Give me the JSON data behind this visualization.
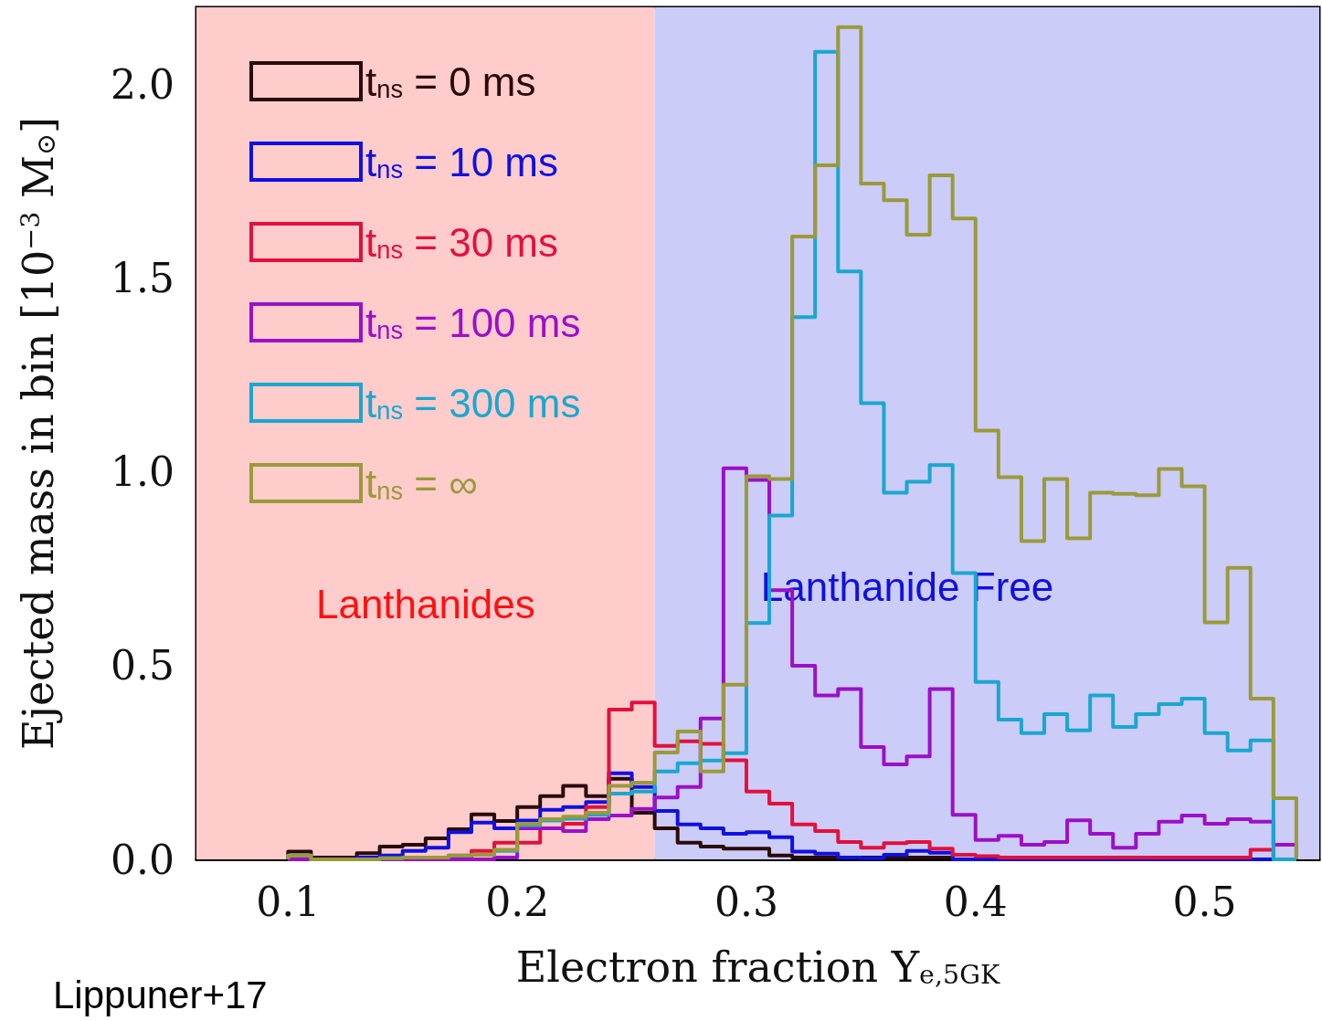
{
  "chart_data": {
    "type": "histogram",
    "xlabel": "Electron fraction Y$_{e,5GK}$",
    "ylabel": "Ejected mass in bin [10$^{−3}$ M$_{⊙}$]",
    "bins": [
      0.1,
      0.11,
      0.12,
      0.13,
      0.14,
      0.15,
      0.16,
      0.17,
      0.18,
      0.19,
      0.2,
      0.21,
      0.22,
      0.23,
      0.24,
      0.25,
      0.26,
      0.27,
      0.28,
      0.29,
      0.3,
      0.31,
      0.32,
      0.33,
      0.34,
      0.35,
      0.36,
      0.37,
      0.38,
      0.39,
      0.4,
      0.41,
      0.42,
      0.43,
      0.44,
      0.45,
      0.46,
      0.47,
      0.48,
      0.49,
      0.5,
      0.51,
      0.52,
      0.53,
      0.54
    ],
    "series": [
      {
        "name": "t$_{ns}$ = 0 ms",
        "color": "#2a0a0a",
        "values": [
          0.02,
          0.005,
          0.005,
          0.016,
          0.033,
          0.038,
          0.054,
          0.078,
          0.116,
          0.099,
          0.135,
          0.163,
          0.19,
          0.163,
          0.208,
          0.12,
          0.08,
          0.043,
          0.033,
          0.028,
          0.028,
          0.01,
          0.005,
          0.005,
          0.005,
          0.005,
          0.005,
          0.005,
          0.005,
          0,
          0,
          0,
          0,
          0,
          0,
          0,
          0,
          0,
          0,
          0,
          0,
          0,
          0,
          0
        ]
      },
      {
        "name": "t$_{ns}$ = 10 ms",
        "color": "#1010e0",
        "values": [
          0,
          0,
          0,
          0.005,
          0.01,
          0.022,
          0.03,
          0.07,
          0.095,
          0.08,
          0.1,
          0.128,
          0.135,
          0.148,
          0.222,
          0.187,
          0.125,
          0.09,
          0.08,
          0.066,
          0.07,
          0.057,
          0.02,
          0.015,
          0.005,
          0.003,
          0.012,
          0.022,
          0.017,
          0,
          0,
          0,
          0,
          0,
          0,
          0,
          0,
          0,
          0,
          0,
          0,
          0,
          0,
          0
        ]
      },
      {
        "name": "t$_{ns}$ = 30 ms",
        "color": "#e3103c",
        "values": [
          0,
          0,
          0,
          0,
          0,
          0,
          0,
          0.005,
          0.022,
          0.043,
          0.043,
          0.08,
          0.092,
          0.135,
          0.387,
          0.405,
          0.293,
          0.305,
          0.298,
          0.256,
          0.175,
          0.144,
          0.09,
          0.073,
          0.045,
          0.03,
          0.042,
          0.045,
          0.028,
          0.012,
          0.008,
          0.005,
          0.005,
          0.005,
          0.005,
          0.005,
          0.005,
          0.005,
          0.005,
          0.005,
          0.005,
          0.005,
          0.025,
          0
        ]
      },
      {
        "name": "t$_{ns}$ = 100 ms",
        "color": "#9b10c8",
        "values": [
          0,
          0,
          0,
          0,
          0,
          0,
          0,
          0,
          0,
          0.005,
          0.08,
          0.08,
          0.073,
          0.104,
          0.113,
          0.13,
          0.16,
          0.187,
          0.364,
          1.01,
          0.98,
          0.695,
          0.5,
          0.423,
          0.44,
          0.29,
          0.245,
          0.266,
          0.44,
          0.115,
          0.05,
          0.061,
          0.038,
          0.045,
          0.101,
          0.066,
          0.03,
          0.066,
          0.097,
          0.113,
          0.092,
          0.104,
          0.097,
          0.038
        ]
      },
      {
        "name": "t$_{ns}$ = 300 ms",
        "color": "#1aa7cf",
        "values": [
          0.01,
          0,
          0,
          0,
          0.003,
          0.005,
          0.005,
          0.01,
          0.012,
          0.022,
          0.088,
          0.1,
          0.105,
          0.115,
          0.17,
          0.175,
          0.227,
          0.248,
          0.255,
          0.274,
          0.61,
          0.888,
          1.4,
          2.085,
          1.518,
          1.178,
          0.947,
          0.975,
          1.018,
          0.739,
          0.458,
          0.361,
          0.326,
          0.375,
          0.333,
          0.423,
          0.342,
          0.375,
          0.401,
          0.415,
          0.326,
          0.281,
          0.307,
          0
        ]
      },
      {
        "name": "t$_{ns}$ = ∞",
        "color": "#9a9a3a",
        "values": [
          0.01,
          0,
          0,
          0,
          0.003,
          0.005,
          0.005,
          0.01,
          0.012,
          0.025,
          0.092,
          0.104,
          0.11,
          0.12,
          0.19,
          0.198,
          0.276,
          0.33,
          0.227,
          0.451,
          0.989,
          0.982,
          1.608,
          1.792,
          2.149,
          1.745,
          1.702,
          1.613,
          1.766,
          1.655,
          1.107,
          0.987,
          0.822,
          0.982,
          0.829,
          0.947,
          0.944,
          0.94,
          1.008,
          0.963,
          0.612,
          0.753,
          0.415,
          0.158
        ]
      }
    ],
    "bands": [
      {
        "axis": "x",
        "from": 0.06,
        "to": 0.26,
        "label": "Lanthanides",
        "color": "#ffcccc"
      },
      {
        "axis": "x",
        "from": 0.26,
        "to": 0.55,
        "label": "Lanthanide Free",
        "color": "#ccccf8"
      }
    ],
    "xlim": [
      0.06,
      0.55
    ],
    "xticks": [
      0.1,
      0.2,
      0.3,
      0.4,
      0.5
    ],
    "ylim": [
      0,
      2.2
    ],
    "yticks": [
      {
        "value": 0,
        "label": "0.0"
      },
      {
        "value": 0.5,
        "label": "0.5"
      },
      {
        "value": 1,
        "label": "1.0"
      },
      {
        "value": 1.5,
        "label": "1.5"
      },
      {
        "value": 2,
        "label": "2.0"
      }
    ],
    "grid": false,
    "legend": "top left",
    "annotations": [
      "Lippuner+17"
    ]
  }
}
